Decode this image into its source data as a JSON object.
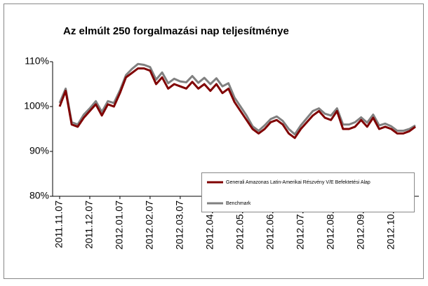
{
  "chart_data": {
    "type": "line",
    "title": "Az elmúlt 250 forgalmazási nap teljesítménye",
    "categories": [
      "2011.11.07",
      null,
      null,
      null,
      null,
      "2011.12.07",
      null,
      null,
      null,
      null,
      "2012.01.07",
      null,
      null,
      null,
      null,
      "2012.02.07",
      null,
      null,
      null,
      null,
      "2012.03.07",
      null,
      null,
      null,
      null,
      "2012.04.07",
      null,
      null,
      null,
      null,
      "2012.05.07",
      null,
      null,
      null,
      null,
      "2012.06.07",
      null,
      null,
      null,
      null,
      "2012.07.07",
      null,
      null,
      null,
      null,
      "2012.08.07",
      null,
      null,
      null,
      null,
      "2012.09.07",
      null,
      null,
      null,
      null,
      "2012.10.07",
      null,
      null,
      null,
      null
    ],
    "series": [
      {
        "name": "Generali Amazonas Latin-Amerikai Részvény V/E Befektetési Alap",
        "color": "#800000",
        "values": [
          100,
          103.5,
          96,
          95.5,
          97.5,
          99,
          100.5,
          98,
          100.5,
          100,
          103,
          106.5,
          107.5,
          108.5,
          108.5,
          108,
          105,
          106.5,
          104,
          105,
          104.5,
          104,
          105.5,
          104,
          105,
          103.5,
          105,
          103,
          104,
          101,
          99,
          97,
          95,
          94,
          95,
          96.5,
          97,
          96,
          94,
          93,
          95,
          96.5,
          98,
          99,
          97.5,
          97,
          99,
          95,
          95,
          95.5,
          97,
          95.5,
          97.5,
          95,
          95.5,
          95,
          94,
          94,
          94.5,
          95.5
        ]
      },
      {
        "name": "Benchmark",
        "color": "#808080",
        "values": [
          100.8,
          104,
          96.5,
          96,
          98.2,
          99.6,
          101.2,
          98.8,
          101.2,
          100.8,
          103.6,
          107,
          108.4,
          109.5,
          109.3,
          108.8,
          106,
          107.6,
          105.2,
          106.2,
          105.6,
          105.4,
          106.8,
          105.3,
          106.4,
          105,
          106.3,
          104.5,
          105.2,
          102,
          100,
          98,
          95.6,
          94.6,
          95.8,
          97.2,
          97.8,
          96.8,
          95,
          93.8,
          95.8,
          97.4,
          99,
          99.6,
          98.4,
          98,
          99.6,
          96,
          96,
          96.5,
          97.6,
          96.4,
          98.2,
          95.8,
          96.2,
          95.6,
          94.6,
          94.6,
          95,
          95.8
        ]
      }
    ],
    "ylim": [
      80,
      110
    ],
    "yticks": [
      {
        "value": 80,
        "label": "80%"
      },
      {
        "value": 90,
        "label": "90%"
      },
      {
        "value": 100,
        "label": "100%"
      },
      {
        "value": 110,
        "label": "110%"
      }
    ],
    "grid": false
  }
}
